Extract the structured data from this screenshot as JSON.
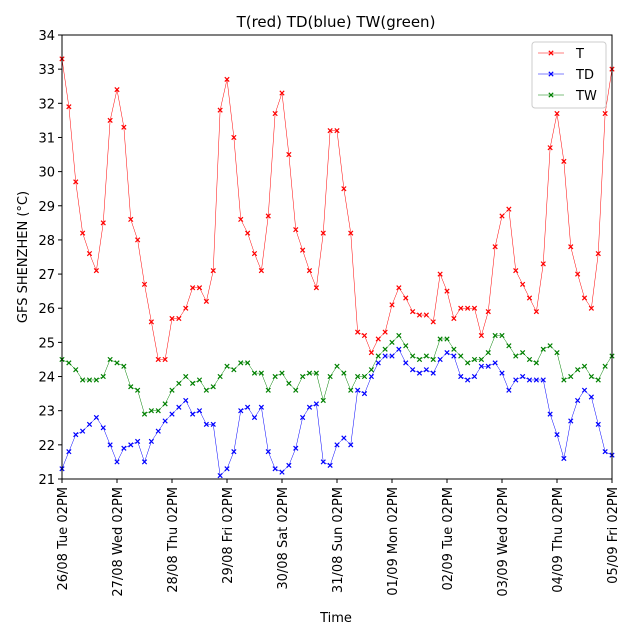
{
  "chart_data": {
    "type": "line",
    "title": "T(red) TD(blue) TW(green)",
    "xlabel": "Time",
    "ylabel": "GFS SHENZHEN (°C)",
    "ylim": [
      21,
      34
    ],
    "xlim": [
      0,
      240
    ],
    "x_step_hours": 3,
    "yticks": [
      21,
      22,
      23,
      24,
      25,
      26,
      27,
      28,
      29,
      30,
      31,
      32,
      33,
      34
    ],
    "xticks": [
      {
        "hour": 0,
        "label": "26/08 Tue 02PM"
      },
      {
        "hour": 24,
        "label": "27/08 Wed 02PM"
      },
      {
        "hour": 48,
        "label": "28/08 Thu 02PM"
      },
      {
        "hour": 72,
        "label": "29/08 Fri 02PM"
      },
      {
        "hour": 96,
        "label": "30/08 Sat 02PM"
      },
      {
        "hour": 120,
        "label": "31/08 Sun 02PM"
      },
      {
        "hour": 144,
        "label": "01/09 Mon 02PM"
      },
      {
        "hour": 168,
        "label": "02/09 Tue 02PM"
      },
      {
        "hour": 192,
        "label": "03/09 Wed 02PM"
      },
      {
        "hour": 216,
        "label": "04/09 Thu 02PM"
      },
      {
        "hour": 240,
        "label": "05/09 Fri 02PM"
      }
    ],
    "legend_position": "top-right",
    "grid": false,
    "series": [
      {
        "name": "T",
        "color": "#ff0000",
        "values": [
          33.3,
          31.9,
          29.7,
          28.2,
          27.6,
          27.1,
          28.5,
          31.5,
          32.4,
          31.3,
          28.6,
          28.0,
          26.7,
          25.6,
          24.5,
          24.5,
          25.7,
          25.7,
          26.0,
          26.6,
          26.6,
          26.2,
          27.1,
          31.8,
          32.7,
          31.0,
          28.6,
          28.2,
          27.6,
          27.1,
          28.7,
          31.7,
          32.3,
          30.5,
          28.3,
          27.7,
          27.1,
          26.6,
          28.2,
          31.2,
          31.2,
          29.5,
          28.2,
          25.3,
          25.2,
          24.7,
          25.1,
          25.3,
          26.1,
          26.6,
          26.3,
          25.9,
          25.8,
          25.8,
          25.6,
          27.0,
          26.5,
          25.7,
          26.0,
          26.0,
          26.0,
          25.2,
          25.9,
          27.8,
          28.7,
          28.9,
          27.1,
          26.7,
          26.3,
          25.9,
          27.3,
          30.7,
          31.7,
          30.3,
          27.8,
          27.0,
          26.3,
          26.0,
          27.6,
          31.7,
          33.0
        ]
      },
      {
        "name": "TD",
        "color": "#0000ff",
        "values": [
          21.3,
          21.8,
          22.3,
          22.4,
          22.6,
          22.8,
          22.5,
          22.0,
          21.5,
          21.9,
          22.0,
          22.1,
          21.5,
          22.1,
          22.4,
          22.7,
          22.9,
          23.1,
          23.3,
          22.9,
          23.0,
          22.6,
          22.6,
          21.1,
          21.3,
          21.8,
          23.0,
          23.1,
          22.8,
          23.1,
          21.8,
          21.3,
          21.2,
          21.4,
          21.9,
          22.8,
          23.1,
          23.2,
          21.5,
          21.4,
          22.0,
          22.2,
          22.0,
          23.6,
          23.5,
          24.0,
          24.4,
          24.6,
          24.6,
          24.8,
          24.4,
          24.2,
          24.1,
          24.2,
          24.1,
          24.5,
          24.7,
          24.6,
          24.0,
          23.9,
          24.0,
          24.3,
          24.3,
          24.4,
          24.1,
          23.6,
          23.9,
          24.0,
          23.9,
          23.9,
          23.9,
          22.9,
          22.3,
          21.6,
          22.7,
          23.3,
          23.6,
          23.4,
          22.6,
          21.8,
          21.7
        ]
      },
      {
        "name": "TW",
        "color": "#008000",
        "values": [
          24.5,
          24.4,
          24.2,
          23.9,
          23.9,
          23.9,
          24.0,
          24.5,
          24.4,
          24.3,
          23.7,
          23.6,
          22.9,
          23.0,
          23.0,
          23.2,
          23.6,
          23.8,
          24.0,
          23.8,
          23.9,
          23.6,
          23.7,
          24.0,
          24.3,
          24.2,
          24.4,
          24.4,
          24.1,
          24.1,
          23.6,
          24.0,
          24.1,
          23.8,
          23.6,
          24.0,
          24.1,
          24.1,
          23.3,
          24.0,
          24.3,
          24.1,
          23.6,
          24.0,
          24.0,
          24.2,
          24.6,
          24.8,
          25.0,
          25.2,
          24.9,
          24.6,
          24.5,
          24.6,
          24.5,
          25.1,
          25.1,
          24.8,
          24.6,
          24.4,
          24.5,
          24.5,
          24.7,
          25.2,
          25.2,
          24.9,
          24.6,
          24.7,
          24.5,
          24.4,
          24.8,
          24.9,
          24.7,
          23.9,
          24.0,
          24.2,
          24.3,
          24.0,
          23.9,
          24.3,
          24.6
        ]
      }
    ]
  }
}
